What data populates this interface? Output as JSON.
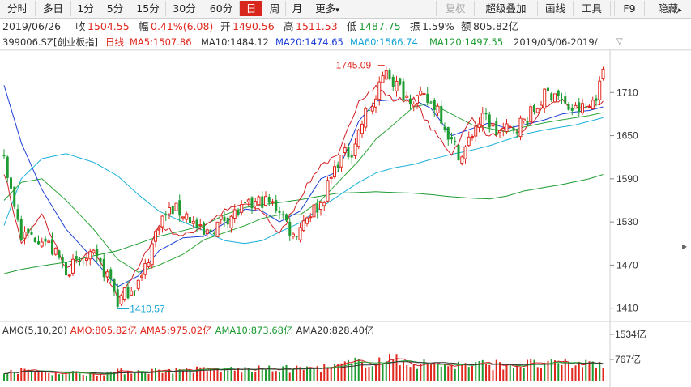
{
  "toolbar": {
    "buttons": [
      "分时",
      "多日",
      "1分",
      "5分",
      "15分",
      "30分",
      "60分",
      "日",
      "周",
      "月",
      "更多"
    ],
    "right": [
      "复权",
      "超级叠加",
      "画线",
      "工具",
      "F9",
      "隐藏"
    ],
    "active": "日",
    "more_caret": "▾",
    "hide_caret": "▸"
  },
  "info": {
    "date": "2019/06/26",
    "close_label": "收",
    "close": "1504.55",
    "chg_label": "幅",
    "chg": "0.41%(6.08)",
    "open_label": "开",
    "open": "1490.56",
    "high_label": "高",
    "high": "1511.53",
    "low_label": "低",
    "low": "1487.75",
    "amp_label": "振",
    "amp": "1.59%",
    "amt_label": "额",
    "amt": "805.82亿"
  },
  "ma_line": {
    "code": "399006.SZ",
    "name": "[创业板指]",
    "period": "日线",
    "ma5": "MA5:1507.86",
    "ma10": "MA10:1484.12",
    "ma20": "MA20:1474.65",
    "ma60": "MA60:1566.74",
    "ma120": "MA120:1497.55",
    "range": "2019/05/06-2019/",
    "arrow": "▽"
  },
  "amo": {
    "label": "AMO(5,10,20)",
    "amo": "AMO:805.82亿",
    "ma5": "AMA5:975.02亿",
    "ma10": "AMA10:873.68亿",
    "ma20": "AMA20:828.40亿"
  },
  "colors": {
    "up": "#e0281e",
    "down": "#1e9c32",
    "ma5": "#d11f24",
    "ma10": "#1b3fd6",
    "ma20": "#2fa63a",
    "ma60": "#19b0d8",
    "ma120": "#1e9c32"
  },
  "chart_data": {
    "type": "candlestick",
    "y_ticks": [
      1710,
      1650,
      1590,
      1530,
      1470,
      1410
    ],
    "ylim": [
      1395,
      1770
    ],
    "vol_ticks": [
      "1534亿",
      "767亿"
    ],
    "vol_ylim": [
      0,
      1534
    ],
    "annotations": {
      "high": "1745.09",
      "low": "1410.57"
    },
    "anchors": {
      "ma5": [
        [
          0,
          1600
        ],
        [
          5,
          1500
        ],
        [
          11,
          1540
        ],
        [
          18,
          1465
        ],
        [
          26,
          1490
        ],
        [
          33,
          1425
        ],
        [
          39,
          1465
        ],
        [
          45,
          1525
        ],
        [
          52,
          1510
        ],
        [
          58,
          1525
        ],
        [
          64,
          1545
        ],
        [
          70,
          1555
        ],
        [
          75,
          1545
        ],
        [
          80,
          1512
        ],
        [
          86,
          1565
        ],
        [
          92,
          1610
        ],
        [
          97,
          1620
        ],
        [
          103,
          1700
        ],
        [
          108,
          1718
        ],
        [
          113,
          1700
        ],
        [
          119,
          1700
        ],
        [
          124,
          1660
        ],
        [
          130,
          1625
        ],
        [
          136,
          1675
        ],
        [
          141,
          1648
        ],
        [
          146,
          1660
        ],
        [
          151,
          1655
        ],
        [
          157,
          1690
        ],
        [
          162,
          1700
        ],
        [
          166,
          1685
        ],
        [
          170,
          1688
        ],
        [
          174,
          1698
        ]
      ],
      "ma10": [
        [
          0,
          1720
        ],
        [
          5,
          1640
        ],
        [
          11,
          1575
        ],
        [
          18,
          1520
        ],
        [
          26,
          1478
        ],
        [
          33,
          1440
        ],
        [
          39,
          1455
        ],
        [
          45,
          1490
        ],
        [
          52,
          1508
        ],
        [
          58,
          1510
        ],
        [
          64,
          1528
        ],
        [
          70,
          1548
        ],
        [
          75,
          1545
        ],
        [
          80,
          1530
        ],
        [
          86,
          1545
        ],
        [
          92,
          1590
        ],
        [
          97,
          1600
        ],
        [
          103,
          1670
        ],
        [
          108,
          1698
        ],
        [
          113,
          1700
        ],
        [
          119,
          1700
        ],
        [
          124,
          1688
        ],
        [
          130,
          1650
        ],
        [
          136,
          1660
        ],
        [
          141,
          1668
        ],
        [
          146,
          1660
        ],
        [
          151,
          1665
        ],
        [
          157,
          1672
        ],
        [
          162,
          1680
        ],
        [
          166,
          1683
        ],
        [
          170,
          1685
        ],
        [
          174,
          1690
        ]
      ],
      "ma20": [
        [
          0,
          1560
        ],
        [
          5,
          1585
        ],
        [
          11,
          1590
        ],
        [
          18,
          1560
        ],
        [
          26,
          1520
        ],
        [
          33,
          1478
        ],
        [
          39,
          1460
        ],
        [
          45,
          1470
        ],
        [
          52,
          1485
        ],
        [
          58,
          1505
        ],
        [
          64,
          1515
        ],
        [
          70,
          1525
        ],
        [
          75,
          1535
        ],
        [
          80,
          1540
        ],
        [
          86,
          1540
        ],
        [
          92,
          1560
        ],
        [
          97,
          1585
        ],
        [
          103,
          1615
        ],
        [
          108,
          1645
        ],
        [
          113,
          1665
        ],
        [
          119,
          1690
        ],
        [
          124,
          1695
        ],
        [
          130,
          1680
        ],
        [
          136,
          1665
        ],
        [
          141,
          1660
        ],
        [
          146,
          1655
        ],
        [
          151,
          1662
        ],
        [
          157,
          1668
        ],
        [
          162,
          1672
        ],
        [
          166,
          1675
        ],
        [
          170,
          1678
        ],
        [
          174,
          1682
        ]
      ],
      "ma60": [
        [
          0,
          1525
        ],
        [
          5,
          1590
        ],
        [
          11,
          1618
        ],
        [
          18,
          1625
        ],
        [
          26,
          1613
        ],
        [
          33,
          1594
        ],
        [
          39,
          1568
        ],
        [
          45,
          1545
        ],
        [
          52,
          1530
        ],
        [
          58,
          1518
        ],
        [
          64,
          1504
        ],
        [
          70,
          1500
        ],
        [
          75,
          1504
        ],
        [
          80,
          1516
        ],
        [
          86,
          1529
        ],
        [
          92,
          1550
        ],
        [
          97,
          1566
        ],
        [
          103,
          1585
        ],
        [
          108,
          1598
        ],
        [
          113,
          1605
        ],
        [
          119,
          1610
        ],
        [
          124,
          1617
        ],
        [
          130,
          1624
        ],
        [
          136,
          1630
        ],
        [
          141,
          1636
        ],
        [
          146,
          1644
        ],
        [
          151,
          1652
        ],
        [
          157,
          1658
        ],
        [
          162,
          1662
        ],
        [
          166,
          1665
        ],
        [
          170,
          1670
        ],
        [
          174,
          1675
        ]
      ],
      "ma120": [
        [
          0,
          1458
        ],
        [
          5,
          1464
        ],
        [
          11,
          1469
        ],
        [
          18,
          1474
        ],
        [
          26,
          1483
        ],
        [
          33,
          1490
        ],
        [
          39,
          1500
        ],
        [
          45,
          1510
        ],
        [
          52,
          1518
        ],
        [
          58,
          1525
        ],
        [
          64,
          1540
        ],
        [
          70,
          1550
        ],
        [
          75,
          1554
        ],
        [
          80,
          1557
        ],
        [
          86,
          1561
        ],
        [
          92,
          1566
        ],
        [
          97,
          1570
        ],
        [
          103,
          1571
        ],
        [
          108,
          1572
        ],
        [
          113,
          1571
        ],
        [
          119,
          1570
        ],
        [
          124,
          1568
        ],
        [
          130,
          1565
        ],
        [
          136,
          1563
        ],
        [
          141,
          1562
        ],
        [
          146,
          1566
        ],
        [
          151,
          1573
        ],
        [
          157,
          1578
        ],
        [
          162,
          1582
        ],
        [
          166,
          1586
        ],
        [
          170,
          1590
        ],
        [
          174,
          1596
        ]
      ],
      "close": [
        [
          0,
          1620
        ],
        [
          5,
          1510
        ],
        [
          11,
          1510
        ],
        [
          18,
          1465
        ],
        [
          26,
          1480
        ],
        [
          31,
          1450
        ],
        [
          33,
          1418
        ],
        [
          37,
          1440
        ],
        [
          40,
          1450
        ],
        [
          45,
          1530
        ],
        [
          49,
          1548
        ],
        [
          53,
          1540
        ],
        [
          58,
          1510
        ],
        [
          64,
          1535
        ],
        [
          70,
          1548
        ],
        [
          75,
          1560
        ],
        [
          80,
          1548
        ],
        [
          84,
          1510
        ],
        [
          88,
          1540
        ],
        [
          92,
          1555
        ],
        [
          97,
          1615
        ],
        [
          101,
          1630
        ],
        [
          105,
          1680
        ],
        [
          108,
          1700
        ],
        [
          111,
          1745
        ],
        [
          113,
          1725
        ],
        [
          117,
          1705
        ],
        [
          122,
          1700
        ],
        [
          126,
          1690
        ],
        [
          130,
          1640
        ],
        [
          133,
          1620
        ],
        [
          137,
          1665
        ],
        [
          140,
          1675
        ],
        [
          143,
          1655
        ],
        [
          147,
          1658
        ],
        [
          151,
          1670
        ],
        [
          154,
          1685
        ],
        [
          157,
          1705
        ],
        [
          160,
          1712
        ],
        [
          163,
          1690
        ],
        [
          166,
          1685
        ],
        [
          170,
          1690
        ],
        [
          173,
          1718
        ],
        [
          174,
          1745
        ]
      ],
      "vol": [
        [
          0,
          290
        ],
        [
          10,
          250
        ],
        [
          25,
          200
        ],
        [
          35,
          260
        ],
        [
          45,
          280
        ],
        [
          60,
          300
        ],
        [
          75,
          310
        ],
        [
          85,
          320
        ],
        [
          95,
          360
        ],
        [
          105,
          520
        ],
        [
          112,
          560
        ],
        [
          120,
          460
        ],
        [
          130,
          420
        ],
        [
          140,
          430
        ],
        [
          150,
          440
        ],
        [
          160,
          440
        ],
        [
          168,
          450
        ],
        [
          174,
          470
        ]
      ]
    }
  }
}
